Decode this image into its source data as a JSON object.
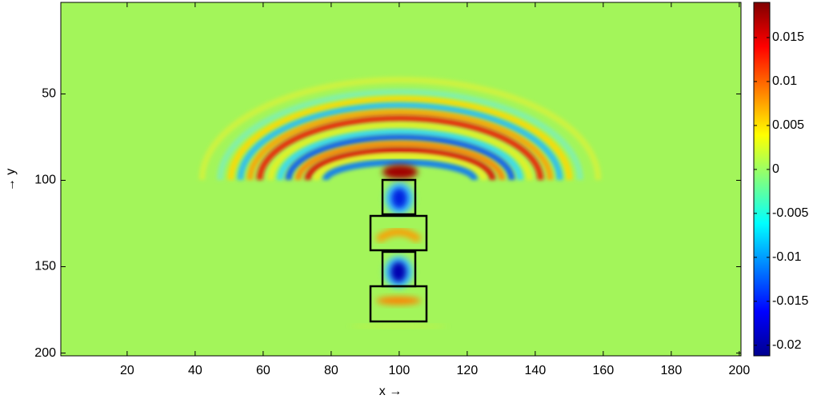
{
  "chart_data": {
    "type": "heatmap",
    "xlabel": "x →",
    "ylabel": "→ y",
    "colormap": "jet",
    "xlim": [
      0.5,
      200.5
    ],
    "ylim": [
      -3,
      201.6
    ],
    "xticks": [
      20,
      40,
      60,
      80,
      100,
      120,
      140,
      160,
      180,
      200
    ],
    "yticks": [
      50,
      100,
      150,
      200
    ],
    "colorbar": {
      "clim": [
        -0.0212,
        0.019
      ],
      "ticks": [
        -0.02,
        -0.015,
        -0.01,
        -0.005,
        0,
        0.005,
        0.01,
        0.015
      ]
    }
  }
}
